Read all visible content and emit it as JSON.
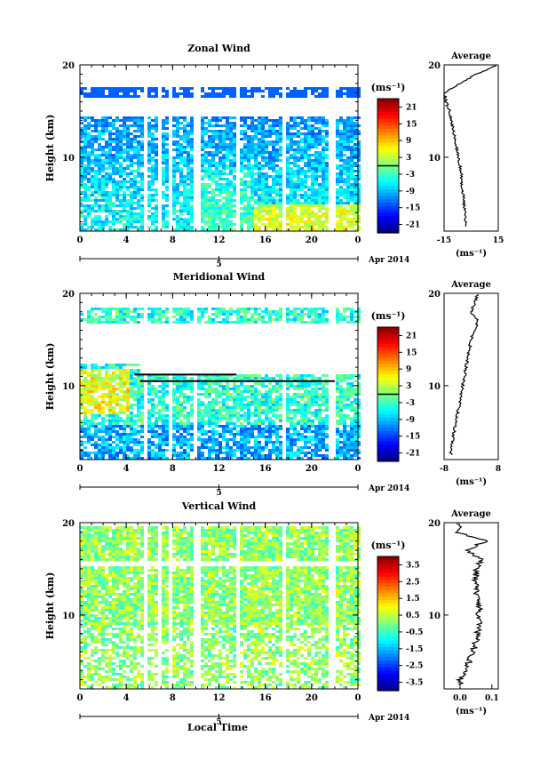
{
  "figure": {
    "xlabel": "Local Time",
    "date_label": "Apr 2014",
    "date_day": "5",
    "colorbar_unit": "(ms⁻¹)",
    "avg_unit": "(ms⁻¹)",
    "avg_title": "Average"
  },
  "chart_data": [
    {
      "type": "heatmap",
      "title": "Zonal Wind",
      "ylabel": "Height (km)",
      "xlim": [
        0,
        24
      ],
      "ylim": [
        2,
        20
      ],
      "x_ticks": [
        "0",
        "4",
        "8",
        "12",
        "16",
        "20",
        "0"
      ],
      "y_ticks": [
        "20",
        "10"
      ],
      "colorbar": {
        "ticks": [
          "21",
          "15",
          "9",
          "3",
          "-3",
          "-9",
          "-15",
          "-21"
        ],
        "range": [
          -24,
          24
        ],
        "contour_level": 0
      },
      "data_gaps_hours": [
        [
          5.4,
          5.8
        ],
        [
          6.6,
          6.9
        ],
        [
          7.4,
          7.8
        ],
        [
          9.8,
          10.2
        ],
        [
          13.3,
          13.5
        ],
        [
          17.2,
          17.5
        ],
        [
          21.4,
          21.8
        ]
      ],
      "profile_heights_km": [
        3,
        5,
        7,
        9,
        11,
        13,
        15,
        16,
        17,
        18,
        19,
        20
      ],
      "profile_values": [
        -3,
        -4,
        -5,
        -6,
        -8,
        -10,
        -12,
        -14,
        -15,
        -6,
        3,
        15
      ],
      "average": {
        "xlim": [
          -15,
          15
        ],
        "x_ticks": [
          "-15",
          "15"
        ],
        "y_ticks": [
          "20",
          "10"
        ]
      }
    },
    {
      "type": "heatmap",
      "title": "Meridional Wind",
      "ylabel": "Height (km)",
      "xlim": [
        0,
        24
      ],
      "ylim": [
        2,
        20
      ],
      "x_ticks": [
        "0",
        "4",
        "8",
        "12",
        "16",
        "20",
        "0"
      ],
      "y_ticks": [
        "20",
        "10"
      ],
      "colorbar": {
        "ticks": [
          "21",
          "15",
          "9",
          "3",
          "-3",
          "-9",
          "-15",
          "-21"
        ],
        "range": [
          -24,
          24
        ],
        "contour_level": 0
      },
      "data_gaps_hours": [
        [
          5.4,
          5.8
        ],
        [
          7.4,
          7.8
        ],
        [
          9.8,
          10.1
        ],
        [
          17.2,
          17.5
        ],
        [
          21.4,
          21.8
        ]
      ],
      "profile_heights_km": [
        3,
        5,
        7,
        9,
        11,
        13,
        15,
        16,
        17,
        18,
        19,
        20
      ],
      "profile_values": [
        -6,
        -5,
        -4,
        -3,
        -2,
        -1,
        0,
        1,
        2,
        0,
        1,
        2
      ],
      "average": {
        "xlim": [
          -8,
          8
        ],
        "x_ticks": [
          "-8",
          "8"
        ],
        "y_ticks": [
          "20",
          "10"
        ]
      }
    },
    {
      "type": "heatmap",
      "title": "Vertical Wind",
      "ylabel": "Height (km)",
      "xlim": [
        0,
        24
      ],
      "ylim": [
        2,
        20
      ],
      "x_ticks": [
        "0",
        "4",
        "8",
        "12",
        "16",
        "20",
        "0"
      ],
      "y_ticks": [
        "20",
        "10"
      ],
      "colorbar": {
        "ticks": [
          "3.5",
          "2.5",
          "1.5",
          "0.5",
          "-0.5",
          "-1.5",
          "-2.5",
          "-3.5"
        ],
        "range": [
          -4,
          4
        ]
      },
      "data_gaps_hours": [
        [
          5.4,
          5.8
        ],
        [
          6.6,
          6.9
        ],
        [
          7.4,
          7.8
        ],
        [
          9.8,
          10.2
        ],
        [
          13.3,
          13.5
        ],
        [
          17.2,
          17.5
        ],
        [
          21.4,
          21.8
        ]
      ],
      "profile_heights_km": [
        3,
        5,
        7,
        9,
        11,
        13,
        15,
        16,
        17,
        18,
        19,
        20
      ],
      "profile_values": [
        0.0,
        0.03,
        0.05,
        0.06,
        0.06,
        0.05,
        0.05,
        0.07,
        0.02,
        0.08,
        -0.01,
        0.0
      ],
      "average": {
        "xlim": [
          -0.05,
          0.12
        ],
        "x_ticks": [
          "0.0",
          "0.1"
        ],
        "y_ticks": [
          "20",
          "10"
        ]
      }
    }
  ]
}
